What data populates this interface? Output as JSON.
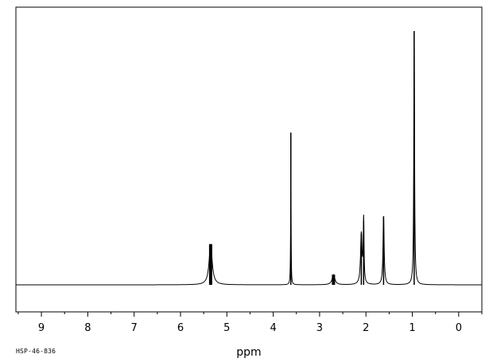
{
  "chart_data": {
    "type": "line",
    "xlabel": "ppm",
    "ylabel": "",
    "xlim": [
      9.55,
      -0.5
    ],
    "x_reversed": true,
    "xticks": [
      9,
      8,
      7,
      6,
      5,
      4,
      3,
      2,
      1,
      0
    ],
    "grid": false,
    "baseline": 0,
    "ylim": [
      0,
      1.0
    ],
    "series": [
      {
        "peaks": [
          {
            "shift": 5.35,
            "height": 0.16,
            "width": 0.08
          },
          {
            "shift": 3.62,
            "height": 0.6,
            "width": 0.01
          },
          {
            "shift": 2.7,
            "height": 0.04,
            "width": 0.07
          },
          {
            "shift": 2.1,
            "height": 0.2,
            "width": 0.04
          },
          {
            "shift": 2.05,
            "height": 0.25,
            "width": 0.02
          },
          {
            "shift": 1.62,
            "height": 0.27,
            "width": 0.03
          },
          {
            "shift": 0.96,
            "height": 1.0,
            "width": 0.02
          }
        ]
      }
    ]
  },
  "footer": {
    "code": "HSP-46-836"
  }
}
